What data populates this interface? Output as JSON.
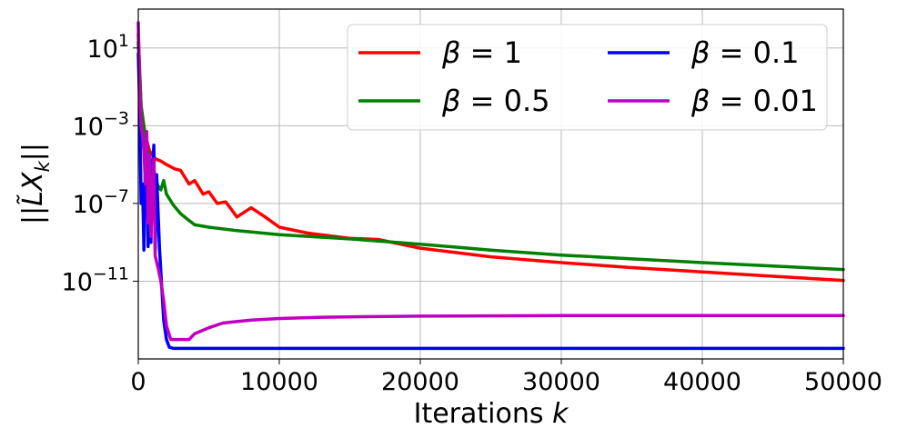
{
  "chart_data": {
    "type": "line",
    "xlabel": "Iterations k",
    "ylabel": "||L̃X_k||",
    "x_scale": "linear",
    "y_scale": "log",
    "xlim": [
      0,
      50000
    ],
    "ylim": [
      1e-15,
      1000
    ],
    "x_ticks": [
      0,
      10000,
      20000,
      30000,
      40000,
      50000
    ],
    "x_tick_labels": [
      "0",
      "10000",
      "20000",
      "30000",
      "40000",
      "50000"
    ],
    "y_ticks": [
      1e-11,
      1e-07,
      0.001,
      10
    ],
    "y_tick_labels": [
      {
        "base": "10",
        "exp": "−11"
      },
      {
        "base": "10",
        "exp": "−7"
      },
      {
        "base": "10",
        "exp": "−3"
      },
      {
        "base": "10",
        "exp": "1"
      }
    ],
    "grid": true,
    "legend": {
      "placement": "top-right",
      "columns": 2
    },
    "series": [
      {
        "name": "β = 1",
        "color": "#ff0000",
        "x": [
          0,
          200,
          500,
          800,
          1200,
          1600,
          2000,
          2600,
          3000,
          3600,
          4000,
          4600,
          5000,
          5600,
          6200,
          7000,
          8000,
          9000,
          10000,
          12000,
          15000,
          17000,
          20000,
          25000,
          30000,
          35000,
          40000,
          45000,
          50000
        ],
        "y": [
          50,
          0.01,
          0.0003,
          5e-05,
          2e-05,
          1.5e-05,
          1e-05,
          6e-06,
          5e-06,
          1e-06,
          1.5e-06,
          3e-07,
          4e-07,
          1e-07,
          1.2e-07,
          2e-08,
          6e-08,
          2e-08,
          6e-09,
          3e-09,
          1.6e-09,
          1.4e-09,
          5e-10,
          1.8e-10,
          9e-11,
          5e-11,
          3e-11,
          1.8e-11,
          1.1e-11
        ]
      },
      {
        "name": "β = 0.5",
        "color": "#008000",
        "x": [
          0,
          200,
          500,
          800,
          1000,
          1200,
          1400,
          1600,
          1800,
          2000,
          2500,
          3000,
          3500,
          4000,
          5000,
          7000,
          10000,
          15000,
          20000,
          25000,
          30000,
          35000,
          40000,
          45000,
          50000
        ],
        "y": [
          20,
          0.01,
          0.0002,
          2e-05,
          5e-06,
          2e-06,
          8e-07,
          5e-07,
          1.5e-06,
          3e-07,
          8e-08,
          3e-08,
          1.5e-08,
          8e-09,
          6e-09,
          4e-09,
          2.5e-09,
          1.5e-09,
          8e-10,
          4e-10,
          2.2e-10,
          1.4e-10,
          9e-11,
          6e-11,
          4e-11
        ]
      },
      {
        "name": "β = 0.1",
        "color": "#0000ff",
        "x": [
          0,
          100,
          200,
          300,
          400,
          500,
          600,
          700,
          800,
          900,
          1000,
          1100,
          1200,
          1300,
          1500,
          1800,
          2000,
          2200,
          2500,
          3000,
          5000,
          10000,
          20000,
          30000,
          40000,
          50000
        ],
        "y": [
          5,
          0.01,
          1e-07,
          1e-06,
          4e-10,
          1e-05,
          0.0002,
          6e-10,
          2e-05,
          1e-09,
          5e-06,
          0.0001,
          4e-10,
          3e-06,
          5e-10,
          1e-13,
          1e-14,
          4e-15,
          3.5e-15,
          3.5e-15,
          3.5e-15,
          3.5e-15,
          3.5e-15,
          3.5e-15,
          3.5e-15,
          3.5e-15
        ]
      },
      {
        "name": "β = 0.01",
        "color": "#bf00bf",
        "x": [
          0,
          100,
          200,
          300,
          400,
          500,
          600,
          700,
          800,
          900,
          1000,
          1100,
          1200,
          1400,
          1600,
          1800,
          2000,
          2300,
          3000,
          3600,
          4000,
          5000,
          6000,
          8000,
          10000,
          13000,
          16000,
          20000,
          30000,
          40000,
          50000
        ],
        "y": [
          200,
          0.05,
          0.001,
          0.0003,
          5e-05,
          1e-06,
          0.0005,
          1e-08,
          3e-05,
          2e-09,
          6e-07,
          2e-05,
          2e-10,
          5e-11,
          1e-11,
          1e-12,
          5e-14,
          1e-14,
          1e-14,
          1e-14,
          2e-14,
          4e-14,
          7e-14,
          1e-13,
          1.2e-13,
          1.4e-13,
          1.5e-13,
          1.6e-13,
          1.7e-13,
          1.7e-13,
          1.7e-13
        ]
      }
    ]
  }
}
